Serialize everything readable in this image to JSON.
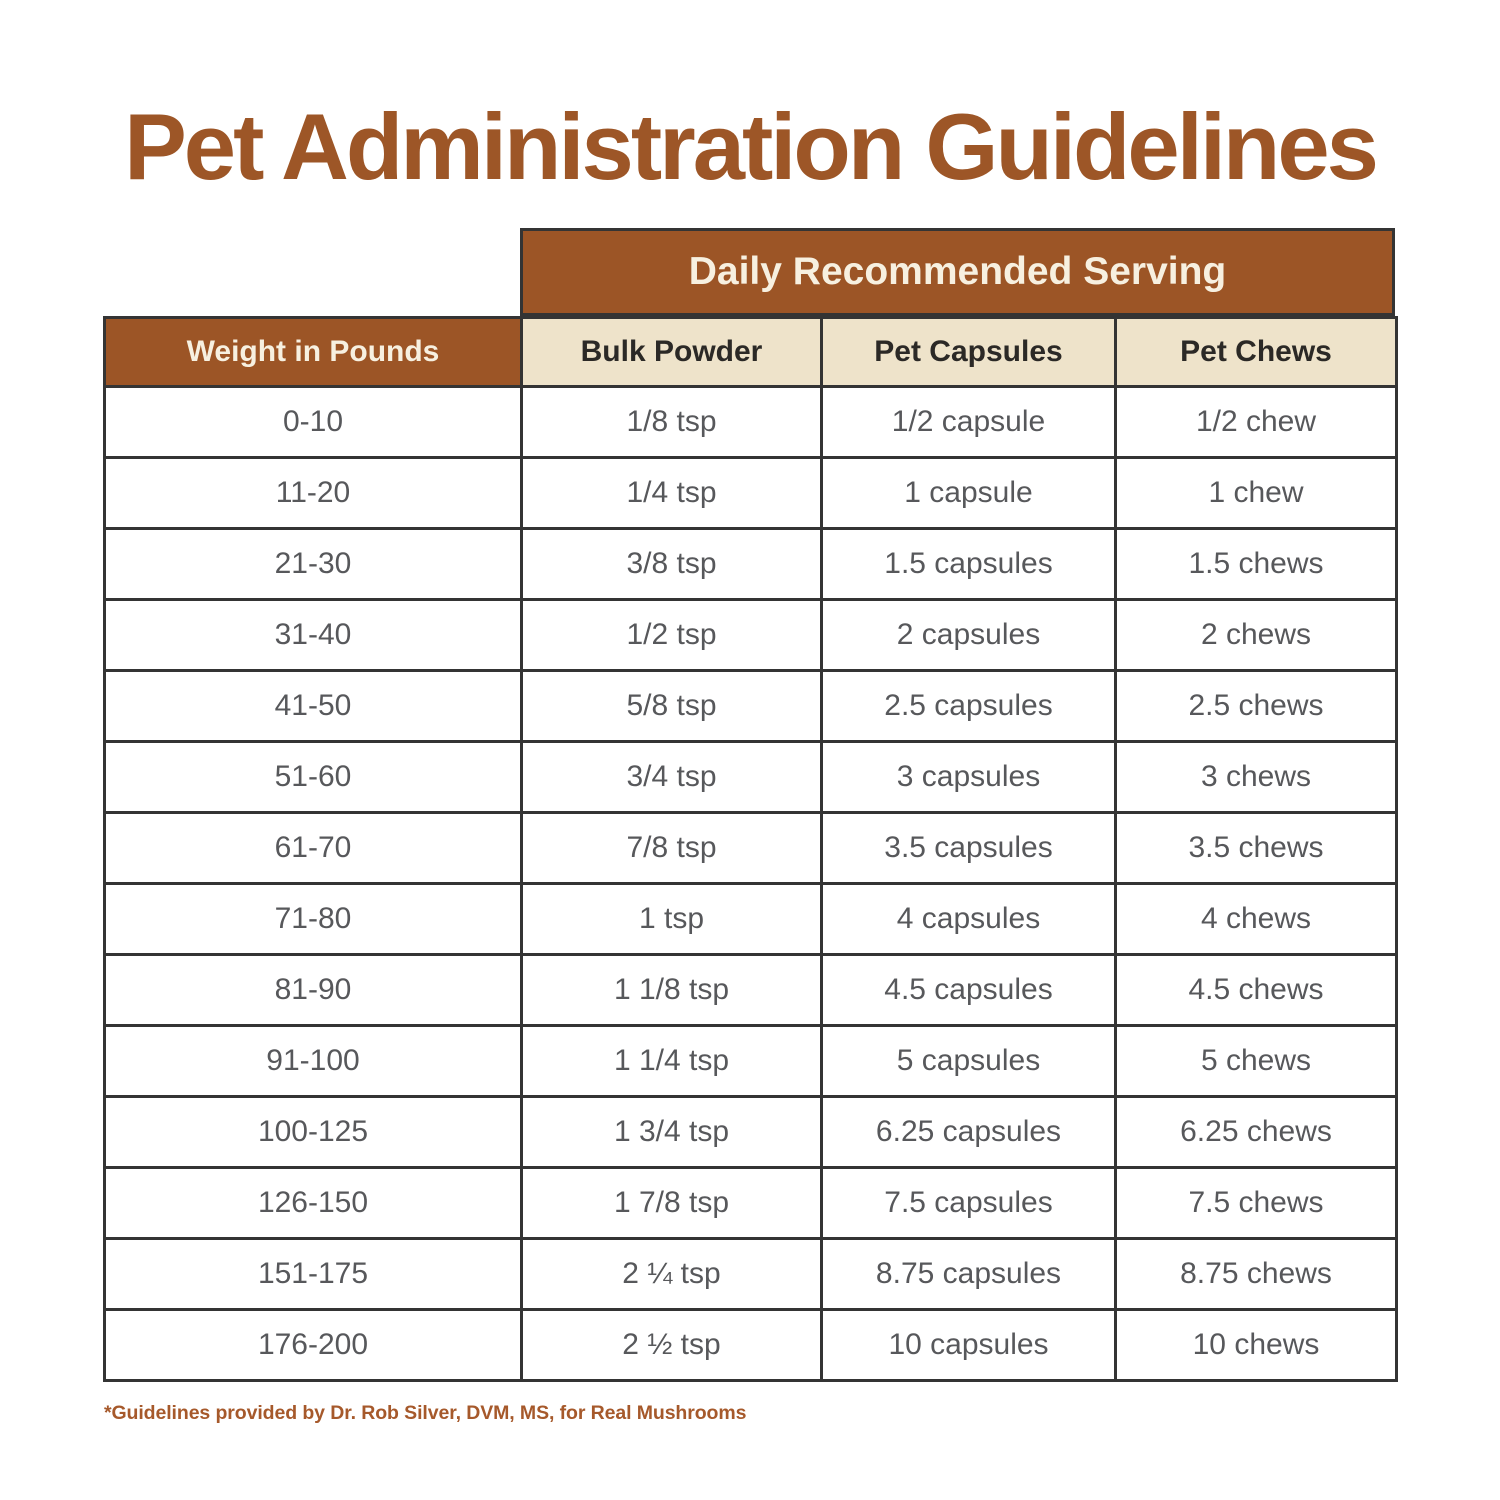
{
  "title": "Pet Administration Guidelines",
  "footnote": "*Guidelines provided by Dr. Rob Silver, DVM, MS, for Real Mushrooms",
  "chart_data": {
    "type": "table",
    "title": "Pet Administration Guidelines",
    "group_header": "Daily Recommended Serving",
    "columns": [
      "Weight in Pounds",
      "Bulk Powder",
      "Pet Capsules",
      "Pet Chews"
    ],
    "rows": [
      [
        "0-10",
        "1/8 tsp",
        "1/2 capsule",
        "1/2 chew"
      ],
      [
        "11-20",
        "1/4 tsp",
        "1 capsule",
        "1 chew"
      ],
      [
        "21-30",
        "3/8 tsp",
        "1.5 capsules",
        "1.5 chews"
      ],
      [
        "31-40",
        "1/2 tsp",
        "2 capsules",
        "2 chews"
      ],
      [
        "41-50",
        "5/8 tsp",
        "2.5 capsules",
        "2.5 chews"
      ],
      [
        "51-60",
        "3/4 tsp",
        "3 capsules",
        "3 chews"
      ],
      [
        "61-70",
        "7/8 tsp",
        "3.5 capsules",
        "3.5 chews"
      ],
      [
        "71-80",
        "1 tsp",
        "4 capsules",
        "4 chews"
      ],
      [
        "81-90",
        "1 1/8 tsp",
        "4.5 capsules",
        "4.5 chews"
      ],
      [
        "91-100",
        "1 1/4 tsp",
        "5 capsules",
        "5 chews"
      ],
      [
        "100-125",
        "1 3/4 tsp",
        "6.25 capsules",
        "6.25 chews"
      ],
      [
        "126-150",
        "1 7/8 tsp",
        "7.5 capsules",
        "7.5 chews"
      ],
      [
        "151-175",
        "2 ¼ tsp",
        "8.75 capsules",
        "8.75 chews"
      ],
      [
        "176-200",
        "2 ½ tsp",
        "10 capsules",
        "10 chews"
      ]
    ]
  },
  "colors": {
    "brand_brown": "#9C5526",
    "title_brown": "#9D5627",
    "cream_background": "#EEE3CA",
    "cream_text": "#F7F0E0",
    "border": "#343434",
    "data_text": "#57585B",
    "subheader_text": "#2B2926",
    "footnote_brown": "#A6592B"
  }
}
